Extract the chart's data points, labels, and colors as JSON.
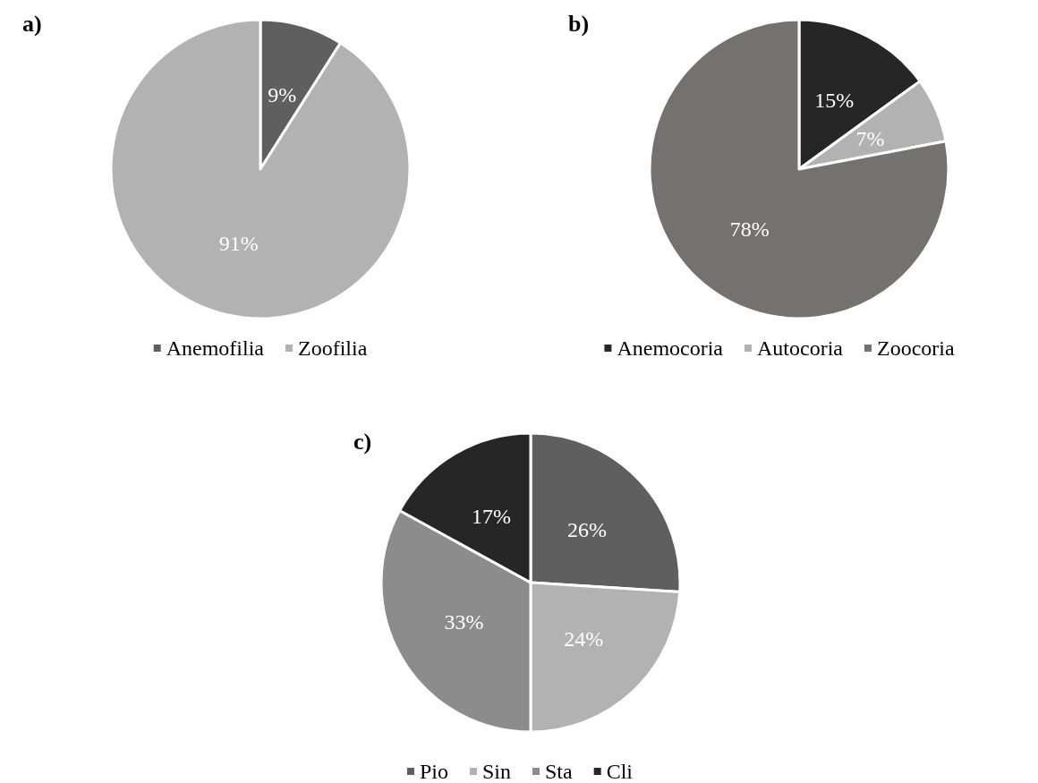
{
  "chart_data": [
    {
      "type": "pie",
      "title": "a)",
      "categories": [
        "Anemofilia",
        "Zoofilia"
      ],
      "values": [
        9,
        91
      ],
      "colors": [
        "#5f5f5f",
        "#b2b2b2"
      ],
      "value_labels": [
        "9%",
        "91%"
      ],
      "legend": "bottom"
    },
    {
      "type": "pie",
      "title": "b)",
      "categories": [
        "Anemocoria",
        "Autocoria",
        "Zoocoria"
      ],
      "values": [
        15,
        7,
        78
      ],
      "colors": [
        "#262626",
        "#b2b2b2",
        "#767171"
      ],
      "value_labels": [
        "15%",
        "7%",
        "78%"
      ],
      "legend": "bottom"
    },
    {
      "type": "pie",
      "title": "c)",
      "categories": [
        "Pio",
        "Sin",
        "Sta",
        "Cli"
      ],
      "values": [
        26,
        24,
        33,
        17
      ],
      "colors": [
        "#5f5f5f",
        "#b2b2b2",
        "#8c8c8c",
        "#262626"
      ],
      "value_labels": [
        "26%",
        "24%",
        "33%",
        "17%"
      ],
      "legend": "bottom"
    }
  ]
}
